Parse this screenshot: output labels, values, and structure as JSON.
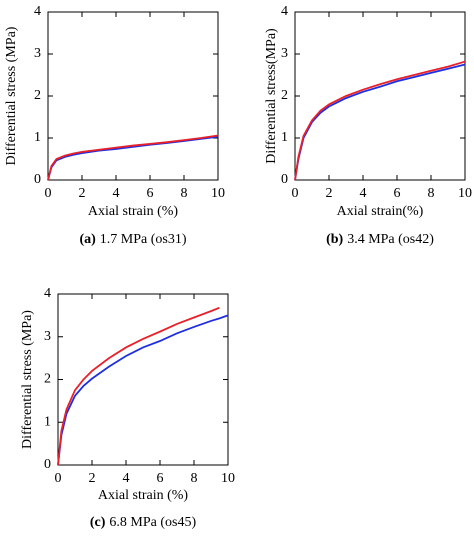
{
  "chart_data": [
    {
      "type": "line",
      "caption_label": "(a)",
      "caption": "1.7 MPa (os31)",
      "x_label": "Axial strain (%)",
      "y_label": "Differential stress (MPa)",
      "xlim": [
        0,
        10
      ],
      "ylim": [
        0,
        4
      ],
      "xticks": [
        0,
        2,
        4,
        6,
        8,
        10
      ],
      "yticks": [
        0,
        1,
        2,
        3,
        4
      ],
      "x": [
        0,
        0.2,
        0.5,
        1,
        1.5,
        2,
        3,
        4,
        5,
        6,
        7,
        8,
        9,
        10
      ],
      "series": [
        {
          "color": "#1f2fe0",
          "values": [
            0,
            0.3,
            0.47,
            0.55,
            0.6,
            0.64,
            0.7,
            0.74,
            0.79,
            0.84,
            0.88,
            0.93,
            0.98,
            1.03
          ]
        },
        {
          "color": "#e8202a",
          "values": [
            0,
            0.33,
            0.5,
            0.58,
            0.63,
            0.67,
            0.72,
            0.77,
            0.82,
            0.86,
            0.9,
            0.95,
            1.0,
            1.06
          ]
        }
      ]
    },
    {
      "type": "line",
      "caption_label": "(b)",
      "caption": "3.4 MPa (os42)",
      "x_label": "Axial strain(%)",
      "y_label": "Differential stress(MPa)",
      "xlim": [
        0,
        10
      ],
      "ylim": [
        0,
        4
      ],
      "xticks": [
        0,
        2,
        4,
        6,
        8,
        10
      ],
      "yticks": [
        0,
        1,
        2,
        3,
        4
      ],
      "x": [
        0,
        0.2,
        0.5,
        1,
        1.5,
        2,
        3,
        4,
        5,
        6,
        7,
        8,
        9,
        10
      ],
      "series": [
        {
          "color": "#1f2fe0",
          "values": [
            0,
            0.5,
            1.0,
            1.38,
            1.6,
            1.75,
            1.95,
            2.1,
            2.22,
            2.35,
            2.45,
            2.55,
            2.65,
            2.75
          ]
        },
        {
          "color": "#e8202a",
          "values": [
            0,
            0.55,
            1.05,
            1.42,
            1.65,
            1.8,
            2.0,
            2.15,
            2.28,
            2.4,
            2.5,
            2.6,
            2.7,
            2.82
          ]
        }
      ]
    },
    {
      "type": "line",
      "caption_label": "(c)",
      "caption": "6.8 MPa (os45)",
      "x_label": "Axial strain (%)",
      "y_label": "Differential stress (MPa)",
      "xlim": [
        0,
        10
      ],
      "ylim": [
        0,
        4
      ],
      "xticks": [
        0,
        2,
        4,
        6,
        8,
        10
      ],
      "yticks": [
        0,
        1,
        2,
        3,
        4
      ],
      "x": [
        0,
        0.2,
        0.5,
        1,
        1.5,
        2,
        3,
        4,
        5,
        6,
        7,
        8,
        9,
        9.5,
        10
      ],
      "series": [
        {
          "color": "#1f2fe0",
          "values": [
            0,
            0.7,
            1.2,
            1.62,
            1.85,
            2.02,
            2.3,
            2.55,
            2.75,
            2.9,
            3.08,
            3.23,
            3.37,
            3.43,
            3.5
          ]
        },
        {
          "color": "#e8202a",
          "values": [
            0,
            0.8,
            1.3,
            1.75,
            2.0,
            2.2,
            2.5,
            2.75,
            2.95,
            3.12,
            3.3,
            3.45,
            3.6,
            3.68,
            null
          ]
        }
      ]
    }
  ]
}
